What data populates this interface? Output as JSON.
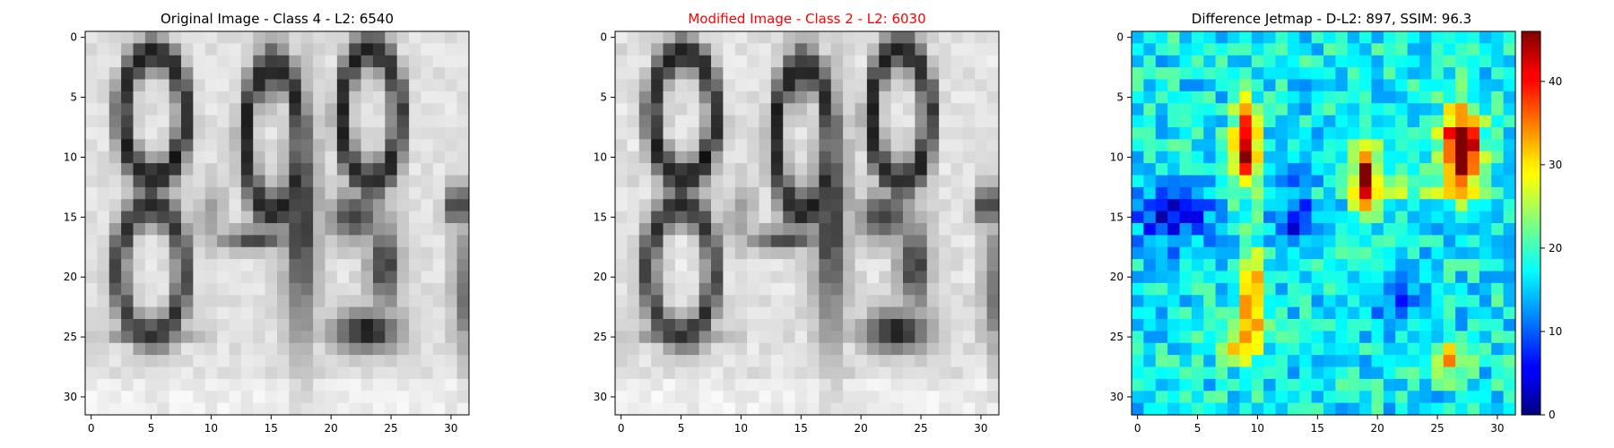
{
  "chart_data": [
    {
      "type": "heatmap",
      "title": "Original Image - Class 4 - L2: 6540",
      "title_color": "#000000",
      "colormap": "gray",
      "grid": false,
      "xlim": [
        -0.5,
        31.5
      ],
      "ylim": [
        31.5,
        -0.5
      ],
      "xticks": [
        0,
        5,
        10,
        15,
        20,
        25,
        30
      ],
      "yticks": [
        0,
        5,
        10,
        15,
        20,
        25,
        30
      ]
    },
    {
      "type": "heatmap",
      "title": "Modified Image - Class 2 - L2: 6030",
      "title_color": "#ff0000",
      "colormap": "gray",
      "grid": false,
      "xlim": [
        -0.5,
        31.5
      ],
      "ylim": [
        31.5,
        -0.5
      ],
      "xticks": [
        0,
        5,
        10,
        15,
        20,
        25,
        30
      ],
      "yticks": [
        0,
        5,
        10,
        15,
        20,
        25,
        30
      ]
    },
    {
      "type": "heatmap",
      "title": "Difference Jetmap - D-L2: 897, SSIM: 96.3",
      "title_color": "#000000",
      "colormap": "jet",
      "grid": false,
      "xlim": [
        -0.5,
        31.5
      ],
      "ylim": [
        31.5,
        -0.5
      ],
      "xticks": [
        0,
        5,
        10,
        15,
        20,
        25,
        30
      ],
      "yticks": [
        0,
        5,
        10,
        15,
        20,
        25,
        30
      ],
      "colorbar": {
        "range": [
          0,
          46
        ],
        "ticks": [
          0,
          10,
          20,
          30,
          40
        ]
      }
    }
  ]
}
